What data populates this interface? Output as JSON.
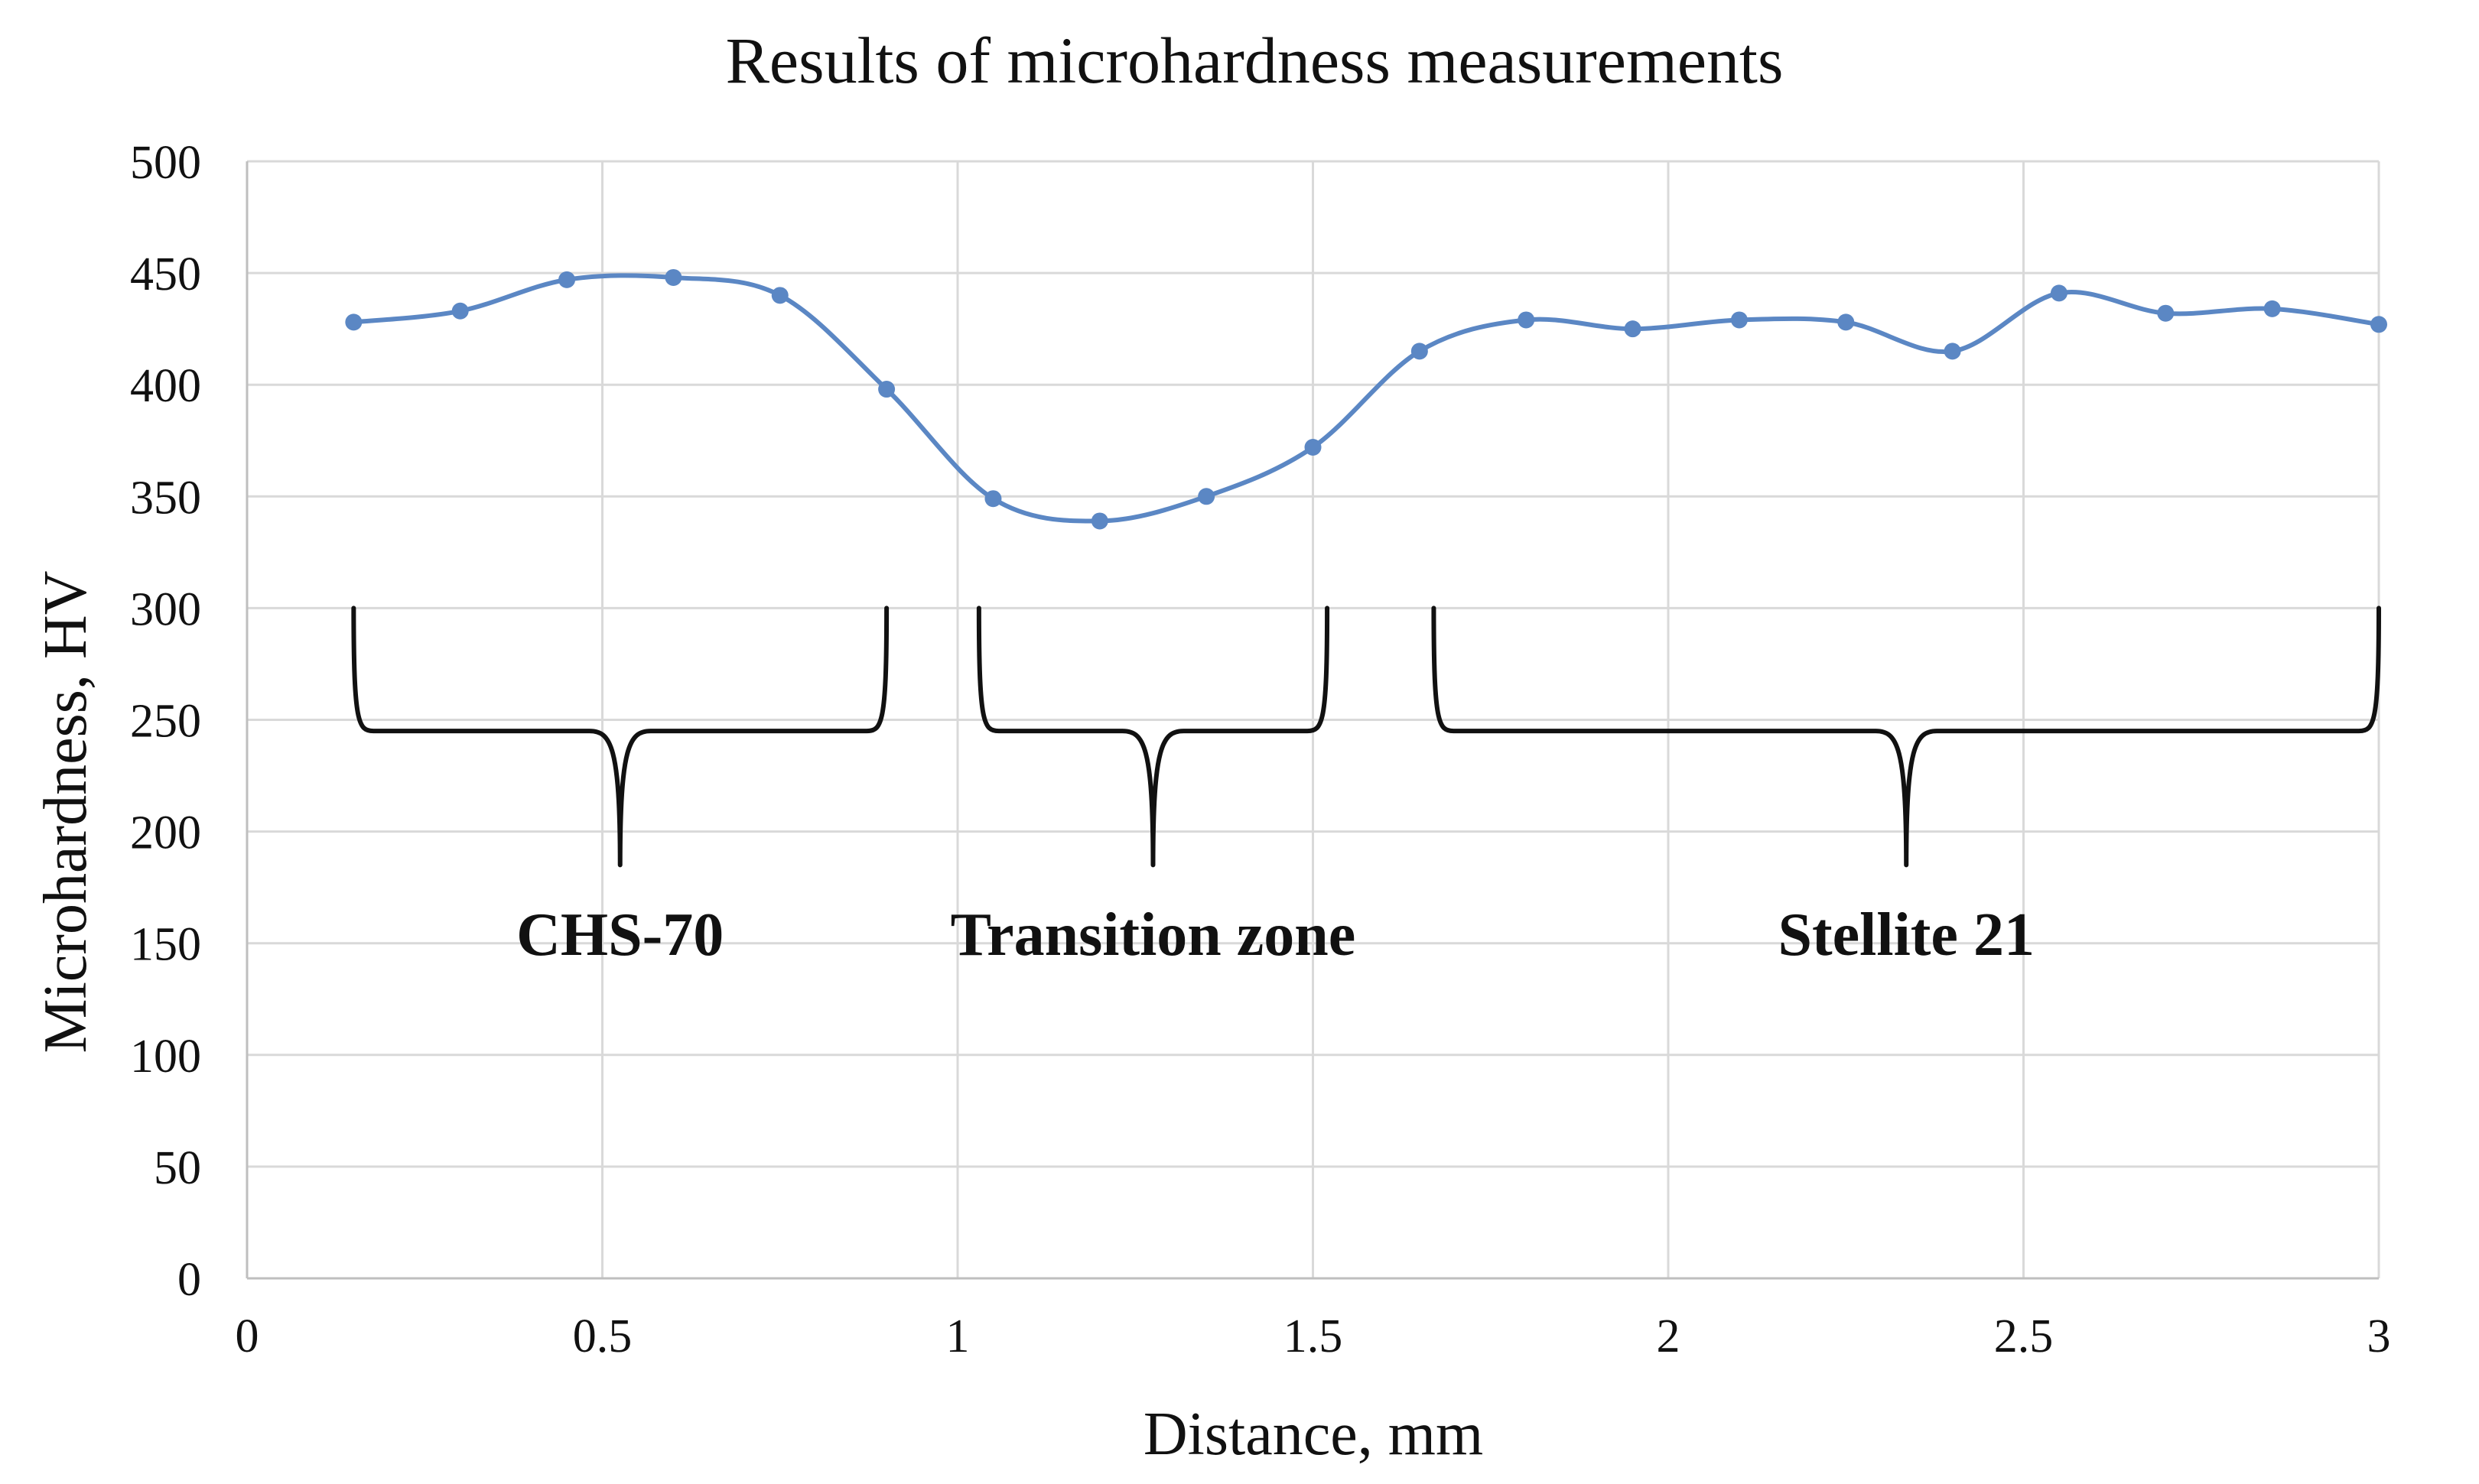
{
  "chart_data": {
    "type": "line",
    "title": "Results of microhardness measurements",
    "xlabel": "Distance, mm",
    "ylabel": "Microhardness, HV",
    "xlim": [
      0,
      3
    ],
    "ylim": [
      0,
      500
    ],
    "x_ticks": [
      0,
      0.5,
      1,
      1.5,
      2,
      2.5,
      3
    ],
    "x_tick_labels": [
      "0",
      "0.5",
      "1",
      "1.5",
      "2",
      "2.5",
      "3"
    ],
    "y_ticks": [
      0,
      50,
      100,
      150,
      200,
      250,
      300,
      350,
      400,
      450,
      500
    ],
    "y_tick_labels": [
      "0",
      "50",
      "100",
      "150",
      "200",
      "250",
      "300",
      "350",
      "400",
      "450",
      "500"
    ],
    "grid": true,
    "series": [
      {
        "name": "Microhardness",
        "color": "#5b87c4",
        "smooth": true,
        "x": [
          0.15,
          0.3,
          0.45,
          0.6,
          0.75,
          0.9,
          1.05,
          1.2,
          1.35,
          1.5,
          1.65,
          1.8,
          1.95,
          2.1,
          2.25,
          2.4,
          2.55,
          2.7,
          2.85,
          3.0
        ],
        "y": [
          428,
          433,
          447,
          448,
          440,
          398,
          349,
          339,
          350,
          372,
          415,
          429,
          425,
          429,
          428,
          415,
          441,
          432,
          434,
          427
        ]
      }
    ],
    "zones": [
      {
        "label": "CHS-70",
        "x_start": 0.15,
        "x_end": 0.9
      },
      {
        "label": "Transition zone",
        "x_start": 1.03,
        "x_end": 1.52
      },
      {
        "label": "Stellite 21",
        "x_start": 1.67,
        "x_end": 3.0
      }
    ]
  }
}
